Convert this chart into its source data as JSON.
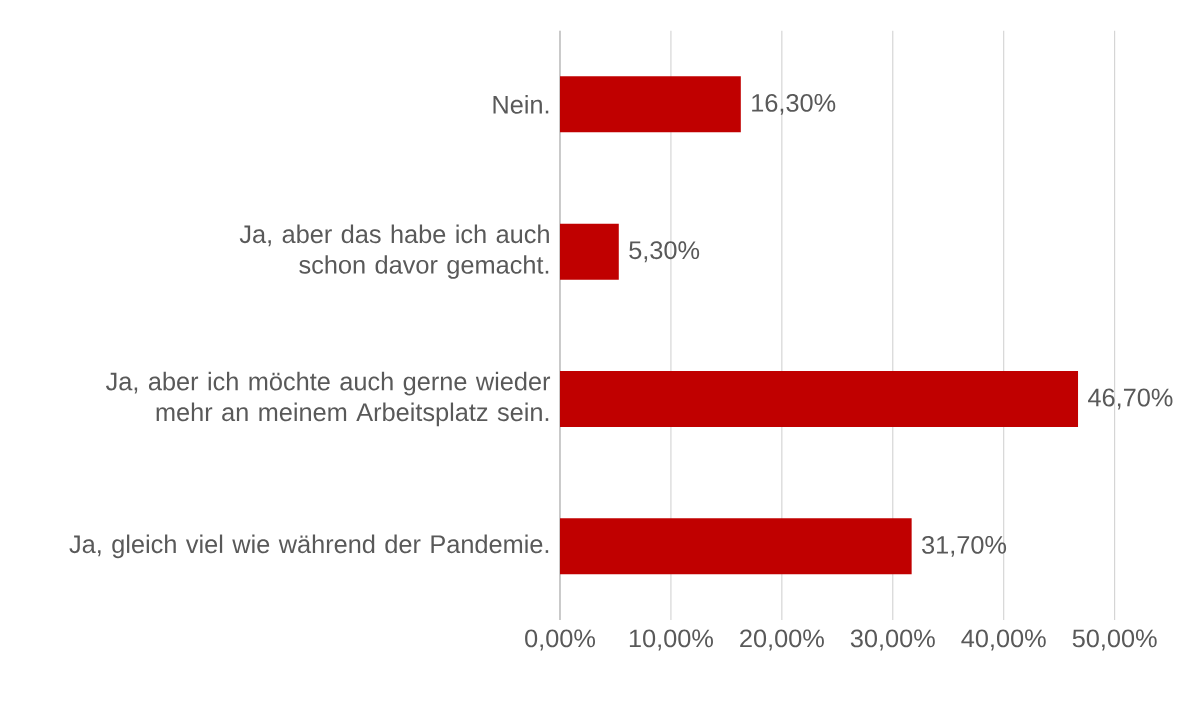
{
  "chart_data": {
    "type": "bar",
    "orientation": "horizontal",
    "categories": [
      "Nein.",
      "Ja, aber das habe ich auch schon davor gemacht.",
      "Ja, aber ich möchte auch gerne wieder mehr an meinem Arbeitsplatz sein.",
      "Ja, gleich viel wie während der Pandemie."
    ],
    "values": [
      16.3,
      5.3,
      46.7,
      31.7
    ],
    "value_labels": [
      "16,30%",
      "5,30%",
      "46,70%",
      "31,70%"
    ],
    "color": "#c00000",
    "xlim": [
      0,
      50
    ],
    "xticks": [
      {
        "value": 0,
        "label": "0,00%"
      },
      {
        "value": 10,
        "label": "10,00%"
      },
      {
        "value": 20,
        "label": "20,00%"
      },
      {
        "value": 30,
        "label": "30,00%"
      },
      {
        "value": 40,
        "label": "40,00%"
      },
      {
        "value": 50,
        "label": "50,00%"
      }
    ],
    "grid": "x"
  }
}
